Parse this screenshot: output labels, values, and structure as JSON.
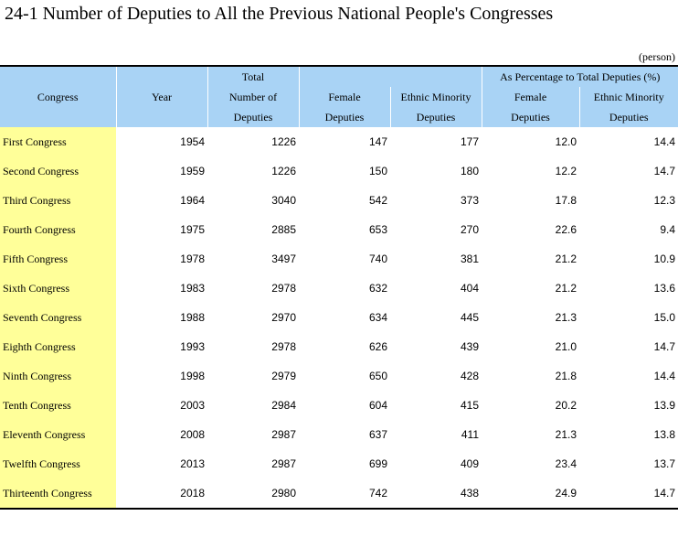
{
  "title": "24-1  Number of Deputies to All the Previous National People's Congresses",
  "unit": "(person)",
  "headers": {
    "congress": "Congress",
    "year": "Year",
    "total_line1": "Total",
    "total_line2": "Number of",
    "total_line3": "Deputies",
    "female_line1": "Female",
    "female_line2": "Deputies",
    "ethnic_line1": "Ethnic Minority",
    "ethnic_line2": "Deputies",
    "pct_group": "As Percentage to Total Deputies (%)",
    "pct_female_line1": "Female",
    "pct_female_line2": "Deputies",
    "pct_ethnic_line1": "Ethnic Minority",
    "pct_ethnic_line2": "Deputies"
  },
  "rows": [
    {
      "congress": "First Congress",
      "year": "1954",
      "total": "1226",
      "female": "147",
      "ethnic": "177",
      "pct_female": "12.0",
      "pct_ethnic": "14.4"
    },
    {
      "congress": "Second Congress",
      "year": "1959",
      "total": "1226",
      "female": "150",
      "ethnic": "180",
      "pct_female": "12.2",
      "pct_ethnic": "14.7"
    },
    {
      "congress": "Third Congress",
      "year": "1964",
      "total": "3040",
      "female": "542",
      "ethnic": "373",
      "pct_female": "17.8",
      "pct_ethnic": "12.3"
    },
    {
      "congress": "Fourth Congress",
      "year": "1975",
      "total": "2885",
      "female": "653",
      "ethnic": "270",
      "pct_female": "22.6",
      "pct_ethnic": "9.4"
    },
    {
      "congress": "Fifth Congress",
      "year": "1978",
      "total": "3497",
      "female": "740",
      "ethnic": "381",
      "pct_female": "21.2",
      "pct_ethnic": "10.9"
    },
    {
      "congress": "Sixth Congress",
      "year": "1983",
      "total": "2978",
      "female": "632",
      "ethnic": "404",
      "pct_female": "21.2",
      "pct_ethnic": "13.6"
    },
    {
      "congress": "Seventh Congress",
      "year": "1988",
      "total": "2970",
      "female": "634",
      "ethnic": "445",
      "pct_female": "21.3",
      "pct_ethnic": "15.0"
    },
    {
      "congress": "Eighth Congress",
      "year": "1993",
      "total": "2978",
      "female": "626",
      "ethnic": "439",
      "pct_female": "21.0",
      "pct_ethnic": "14.7"
    },
    {
      "congress": "Ninth Congress",
      "year": "1998",
      "total": "2979",
      "female": "650",
      "ethnic": "428",
      "pct_female": "21.8",
      "pct_ethnic": "14.4"
    },
    {
      "congress": "Tenth Congress",
      "year": "2003",
      "total": "2984",
      "female": "604",
      "ethnic": "415",
      "pct_female": "20.2",
      "pct_ethnic": "13.9"
    },
    {
      "congress": "Eleventh Congress",
      "year": "2008",
      "total": "2987",
      "female": "637",
      "ethnic": "411",
      "pct_female": "21.3",
      "pct_ethnic": "13.8"
    },
    {
      "congress": "Twelfth Congress",
      "year": "2013",
      "total": "2987",
      "female": "699",
      "ethnic": "409",
      "pct_female": "23.4",
      "pct_ethnic": "13.7"
    },
    {
      "congress": "Thirteenth Congress",
      "year": "2018",
      "total": "2980",
      "female": "742",
      "ethnic": "438",
      "pct_female": "24.9",
      "pct_ethnic": "14.7"
    }
  ],
  "colors": {
    "header_bg": "#a9d3f5",
    "congress_col_bg": "#ffff99"
  }
}
